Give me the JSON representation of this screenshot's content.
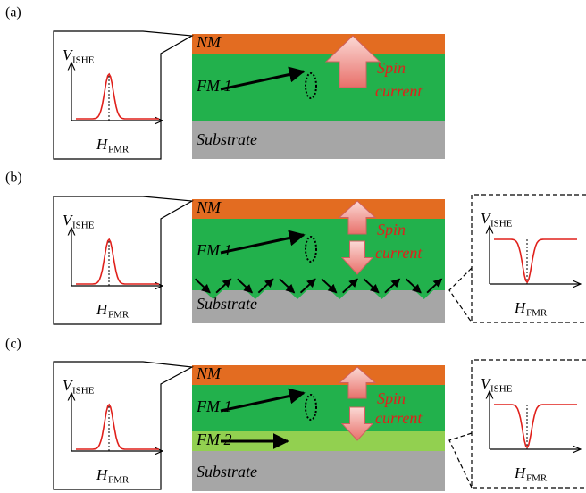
{
  "panels": [
    {
      "label": "(a)",
      "layers": [
        "NM",
        "FM 1",
        "Substrate"
      ],
      "spin_current": [
        "Spin",
        "current"
      ],
      "insets": [
        {
          "y_axis": "V",
          "y_axis_sub": "ISHE",
          "x_axis": "H",
          "x_axis_sub": "FMR"
        }
      ]
    },
    {
      "label": "(b)",
      "layers": [
        "NM",
        "FM 1",
        "Substrate"
      ],
      "spin_current": [
        "Spin",
        "current"
      ],
      "insets": [
        {
          "y_axis": "V",
          "y_axis_sub": "ISHE",
          "x_axis": "H",
          "x_axis_sub": "FMR"
        },
        {
          "y_axis": "V",
          "y_axis_sub": "ISHE",
          "x_axis": "H",
          "x_axis_sub": "FMR"
        }
      ]
    },
    {
      "label": "(c)",
      "layers": [
        "NM",
        "FM 1",
        "FM 2",
        "Substrate"
      ],
      "spin_current": [
        "Spin",
        "current"
      ],
      "insets": [
        {
          "y_axis": "V",
          "y_axis_sub": "ISHE",
          "x_axis": "H",
          "x_axis_sub": "FMR"
        },
        {
          "y_axis": "V",
          "y_axis_sub": "ISHE",
          "x_axis": "H",
          "x_axis_sub": "FMR"
        }
      ]
    }
  ]
}
